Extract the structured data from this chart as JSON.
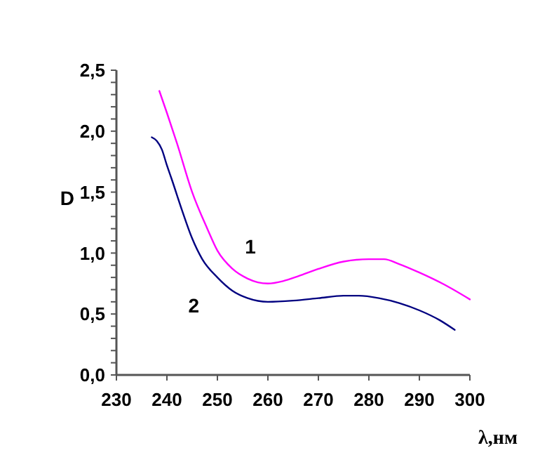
{
  "chart_data": {
    "type": "line",
    "xlabel": "λ,нм",
    "ylabel": "D",
    "xlim": [
      230,
      300
    ],
    "xticks": [
      230,
      240,
      250,
      260,
      270,
      280,
      290,
      300
    ],
    "ylim": [
      0,
      2.5
    ],
    "yticks": [
      {
        "value": 0,
        "label": "0,0"
      },
      {
        "value": 0.1,
        "label": null
      },
      {
        "value": 0.2,
        "label": null
      },
      {
        "value": 0.3,
        "label": null
      },
      {
        "value": 0.4,
        "label": null
      },
      {
        "value": 0.5,
        "label": "0,5"
      },
      {
        "value": 0.6,
        "label": null
      },
      {
        "value": 0.7,
        "label": null
      },
      {
        "value": 0.8,
        "label": null
      },
      {
        "value": 0.9,
        "label": null
      },
      {
        "value": 1,
        "label": "1,0"
      },
      {
        "value": 1.1,
        "label": null
      },
      {
        "value": 1.2,
        "label": null
      },
      {
        "value": 1.3,
        "label": null
      },
      {
        "value": 1.4,
        "label": null
      },
      {
        "value": 1.5,
        "label": "1,5"
      },
      {
        "value": 1.6,
        "label": null
      },
      {
        "value": 1.7,
        "label": null
      },
      {
        "value": 1.8,
        "label": null
      },
      {
        "value": 1.9,
        "label": null
      },
      {
        "value": 2,
        "label": "2,0"
      },
      {
        "value": 2.1,
        "label": null
      },
      {
        "value": 2.2,
        "label": null
      },
      {
        "value": 2.3,
        "label": null
      },
      {
        "value": 2.4,
        "label": null
      },
      {
        "value": 2.5,
        "label": "2,5"
      }
    ],
    "grid": false,
    "marker": "none",
    "line_style": "solid",
    "series": [
      {
        "name": "1",
        "color": "#ff00ff",
        "x": [
          238.5,
          240,
          242,
          245,
          248,
          250,
          253,
          256,
          258,
          260,
          263,
          266,
          270,
          275,
          280,
          283,
          286,
          290,
          295,
          300
        ],
        "values": [
          2.33,
          2.15,
          1.9,
          1.5,
          1.2,
          1.02,
          0.87,
          0.79,
          0.76,
          0.75,
          0.77,
          0.81,
          0.87,
          0.93,
          0.95,
          0.95,
          0.91,
          0.84,
          0.74,
          0.62
        ]
      },
      {
        "name": "2",
        "color": "#000080",
        "x": [
          237,
          238,
          239,
          240,
          241,
          243,
          245,
          247,
          250,
          253,
          256,
          260,
          265,
          270,
          275,
          278,
          282,
          286,
          290,
          294,
          297
        ],
        "values": [
          1.95,
          1.92,
          1.85,
          1.72,
          1.6,
          1.35,
          1.12,
          0.95,
          0.8,
          0.69,
          0.63,
          0.6,
          0.61,
          0.63,
          0.65,
          0.65,
          0.63,
          0.59,
          0.53,
          0.45,
          0.37
        ]
      }
    ]
  }
}
